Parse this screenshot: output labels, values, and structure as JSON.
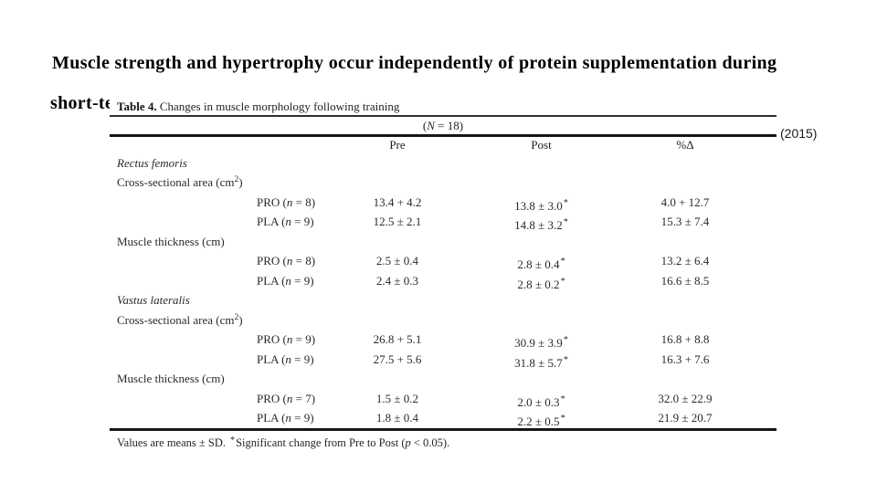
{
  "slide": {
    "title_line1": "Muscle strength and hypertrophy occur independently of protein supplementation during",
    "title_line2_fragment": "short-te",
    "year": "(2015)"
  },
  "table": {
    "caption_label": "Table 4.",
    "caption_text": " Changes in muscle morphology following training",
    "n_pre": "(",
    "n_label": "N",
    "n_post": " = 18)",
    "headers": {
      "pre": "Pre",
      "post": "Post",
      "pct": "%Δ"
    },
    "rows": [
      {
        "text": "Rectus femoris"
      },
      {
        "t1": "Cross-sectional area (cm",
        "sup": "2",
        "t2": ")"
      },
      {
        "g1": "PRO (",
        "gn": "n",
        "g2": " = 8)",
        "pre": "13.4 + 4.2",
        "post": "13.8 ± 3.0",
        "star": "*",
        "pct": "4.0 + 12.7"
      },
      {
        "g1": "PLA (",
        "gn": "n",
        "g2": " = 9)",
        "pre": "12.5 ± 2.1",
        "post": "14.8 ± 3.2",
        "star": "*",
        "pct": "15.3 ± 7.4"
      },
      {
        "text": "Muscle thickness (cm)"
      },
      {
        "g1": "PRO (",
        "gn": "n",
        "g2": " = 8)",
        "pre": "2.5 ± 0.4",
        "post": "2.8 ± 0.4",
        "star": "*",
        "pct": "13.2 ± 6.4"
      },
      {
        "g1": "PLA (",
        "gn": "n",
        "g2": " = 9)",
        "pre": "2.4 ± 0.3",
        "post": "2.8 ± 0.2",
        "star": "*",
        "pct": "16.6 ± 8.5"
      },
      {
        "text": "Vastus lateralis"
      },
      {
        "t1": "Cross-sectional area (cm",
        "sup": "2",
        "t2": ")"
      },
      {
        "g1": "PRO (",
        "gn": "n",
        "g2": " = 9)",
        "pre": "26.8 + 5.1",
        "post": "30.9 ± 3.9",
        "star": "*",
        "pct": "16.8 + 8.8"
      },
      {
        "g1": "PLA (",
        "gn": "n",
        "g2": " = 9)",
        "pre": "27.5 + 5.6",
        "post": "31.8 ± 5.7",
        "star": "*",
        "pct": "16.3 + 7.6"
      },
      {
        "text": "Muscle thickness (cm)"
      },
      {
        "g1": "PRO (",
        "gn": "n",
        "g2": " = 7)",
        "pre": "1.5 ± 0.2",
        "post": "2.0 ± 0.3",
        "star": "*",
        "pct": "32.0 ± 22.9"
      },
      {
        "g1": "PLA (",
        "gn": "n",
        "g2": " = 9)",
        "pre": "1.8 ± 0.4",
        "post": "2.2 ± 0.5",
        "star": "*",
        "pct": "21.9 ± 20.7"
      }
    ],
    "footnote": {
      "f1": "Values are means ± SD. ",
      "star": "*",
      "f2": "Significant change from Pre to Post (",
      "p": "p",
      "f3": " < 0.05)."
    }
  }
}
